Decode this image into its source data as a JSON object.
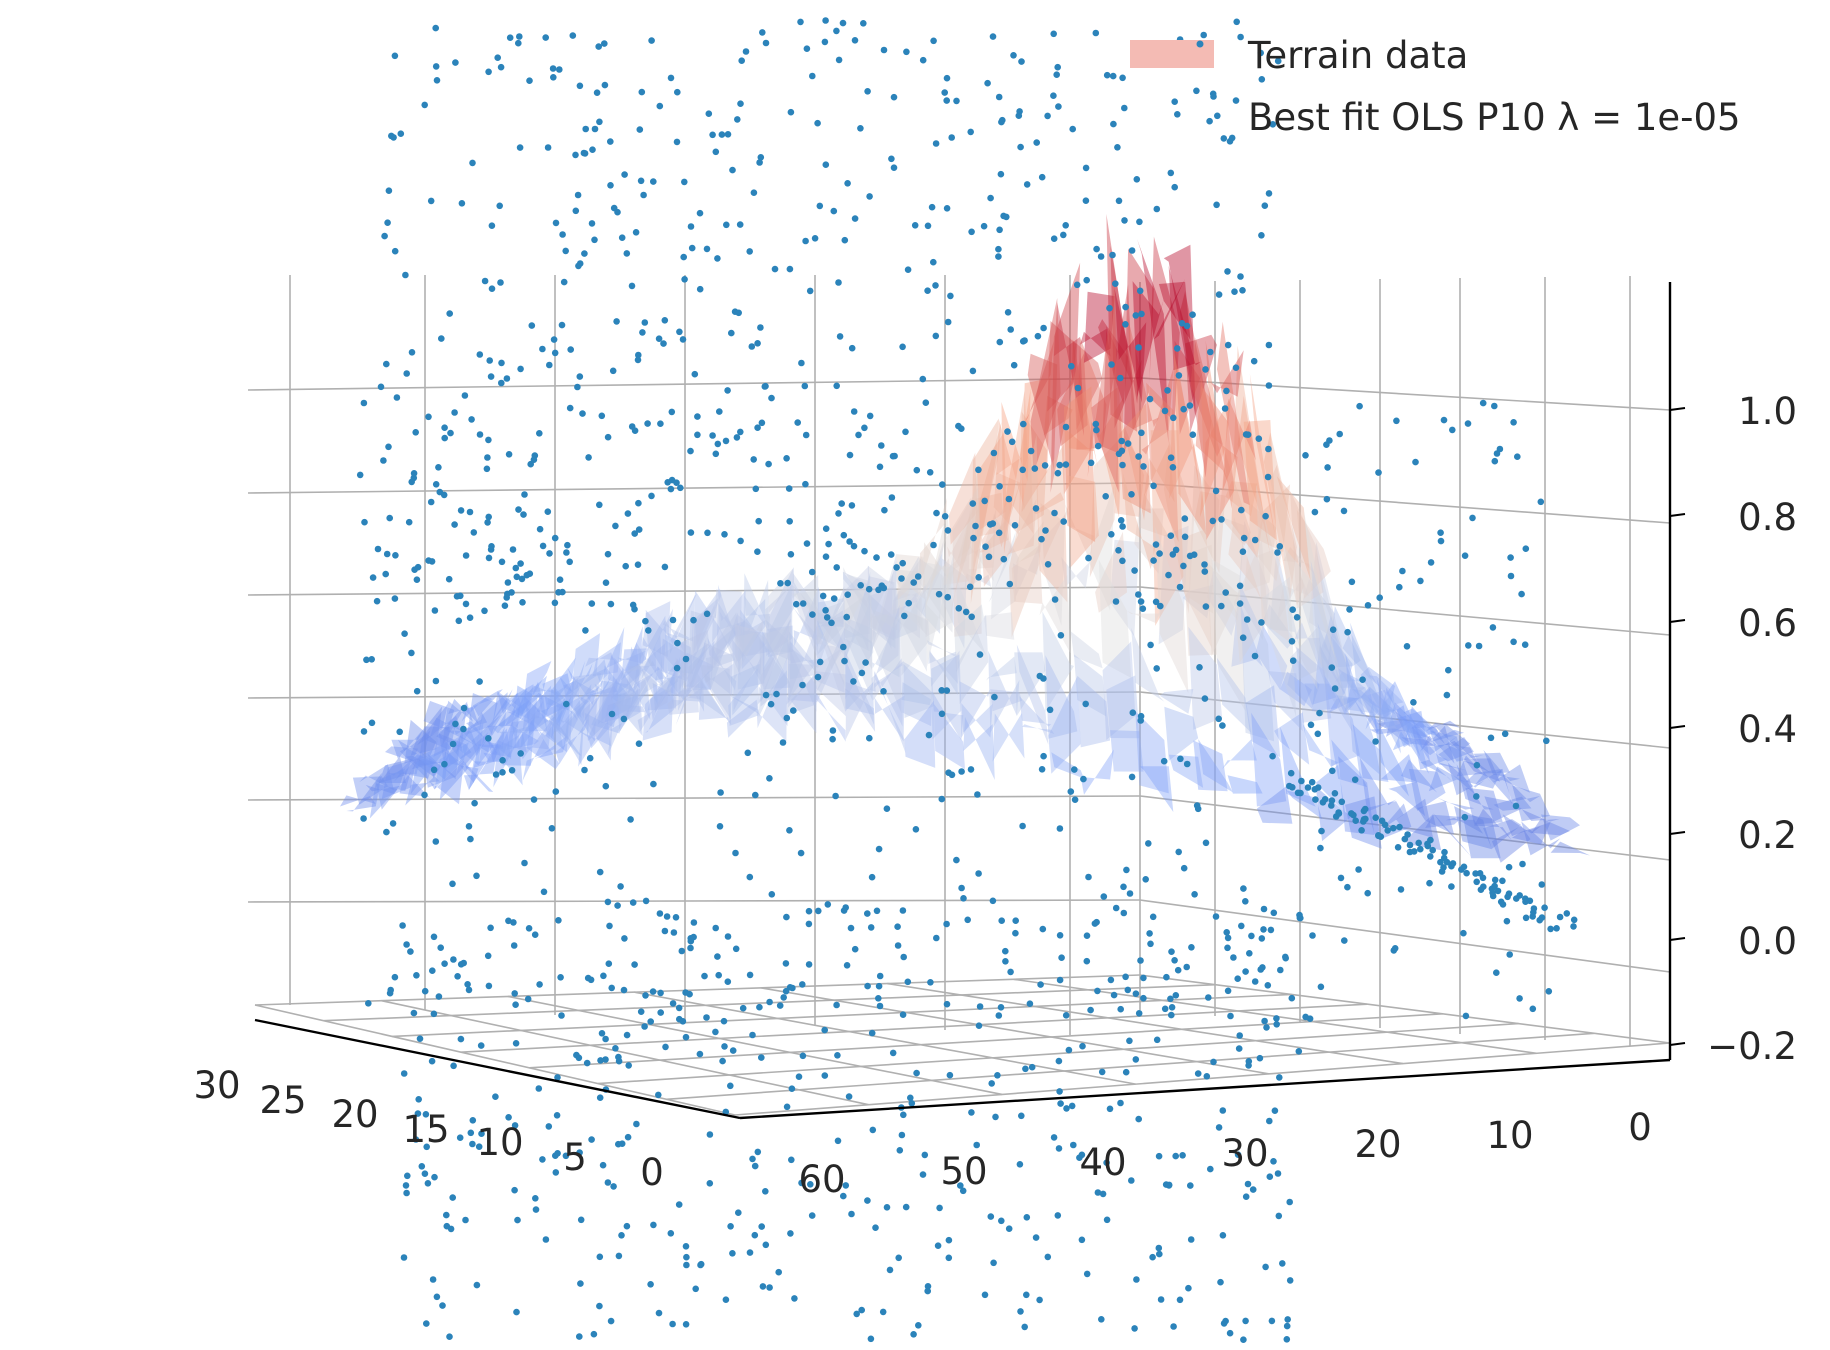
{
  "chart_data": {
    "type": "surface3d+scatter3d",
    "title": "",
    "axes": {
      "x": {
        "label": "",
        "ticks": [
          0,
          5,
          10,
          15,
          20,
          25,
          30
        ],
        "range": [
          0,
          30
        ]
      },
      "y": {
        "label": "",
        "ticks": [
          0,
          10,
          20,
          30,
          40,
          50,
          60
        ],
        "range": [
          0,
          65
        ]
      },
      "z": {
        "label": "",
        "ticks": [
          "−0.2",
          "0.0",
          "0.2",
          "0.4",
          "0.6",
          "0.8",
          "1.0"
        ],
        "tick_values": [
          -0.2,
          0.0,
          0.2,
          0.4,
          0.6,
          0.8,
          1.0
        ],
        "range": [
          -0.2,
          1.2
        ]
      }
    },
    "grid": true,
    "legend": {
      "placement": "top-right",
      "entries": [
        {
          "label": "Terrain data",
          "kind": "surface",
          "color": "#f4bbb4"
        },
        {
          "label": "Best fit OLS P10 λ = 1e-05",
          "kind": "scatter",
          "color": "#2b83ba"
        }
      ]
    },
    "series": [
      {
        "name": "Terrain data",
        "type": "surface",
        "colormap": "coolwarm",
        "opacity": 0.55
      },
      {
        "name": "Best fit OLS P10 λ = 1e-05",
        "type": "scatter",
        "color": "#2b83ba",
        "marker_size": 3
      }
    ],
    "colors": {
      "scatter": "#2b83ba",
      "surface_low": "#6a8bef",
      "surface_high": "#d6424a",
      "grid": "#b0b0b0",
      "axis": "#000000"
    }
  }
}
